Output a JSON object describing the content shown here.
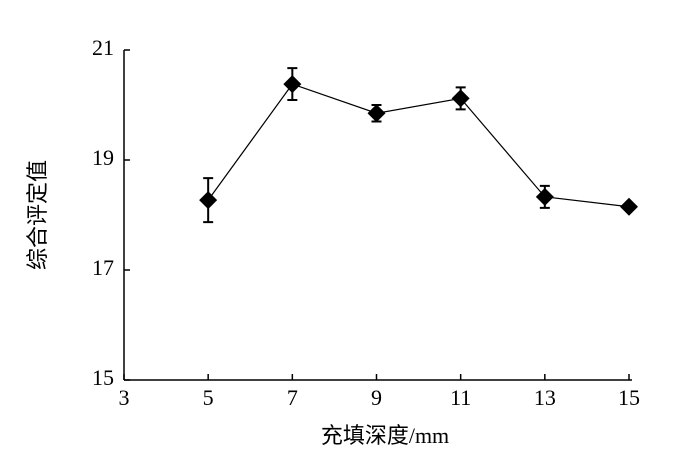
{
  "chart_data": {
    "type": "line",
    "x_label": "充填深度/mm",
    "y_label": "综合评定值",
    "x": [
      5,
      7,
      9,
      11,
      13,
      15
    ],
    "values": [
      18.27,
      20.38,
      19.85,
      20.12,
      18.33,
      18.15
    ],
    "errors": [
      0.4,
      0.29,
      0.15,
      0.2,
      0.2,
      0.05
    ],
    "color": "#000000",
    "xlim": [
      3,
      15
    ],
    "xticks": [
      3,
      5,
      7,
      9,
      11,
      13,
      15
    ],
    "ylim": [
      15,
      21
    ],
    "yticks": [
      15,
      17,
      19,
      21
    ],
    "grid": false
  }
}
